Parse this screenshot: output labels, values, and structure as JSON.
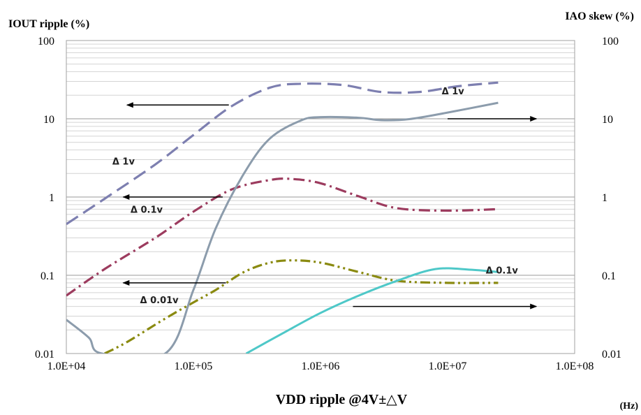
{
  "chart_data": {
    "type": "line",
    "title": "",
    "ylabel": "IOUT ripple (%)",
    "y2label": "IAO skew (%)",
    "xlabel": "VDD ripple @4V±△V",
    "xunit": "(Hz)",
    "x_scale": "log",
    "y_scale": "log",
    "y2_scale": "log",
    "xlim": [
      10000,
      100000000
    ],
    "ylim": [
      0.01,
      100
    ],
    "y2lim": [
      0.01,
      100
    ],
    "x_tick_labels": [
      "1.0E+04",
      "1.0E+05",
      "1.0E+06",
      "1.0E+07",
      "1.0E+08"
    ],
    "y_tick_labels": [
      "100",
      "10",
      "1",
      "0.1",
      "0.01"
    ],
    "y2_tick_labels": [
      "100",
      "10",
      "1",
      "0.1",
      "0.01"
    ],
    "grid": "horizontal minor lines",
    "series": [
      {
        "label": "Δ 1v",
        "axis": "left",
        "style": "dashed",
        "color": "#7d7fb0",
        "points": [
          [
            10000,
            0.45
          ],
          [
            20000,
            0.95
          ],
          [
            50000,
            2.6
          ],
          [
            100000,
            6.2
          ],
          [
            200000,
            14.5
          ],
          [
            400000,
            25
          ],
          [
            700000,
            28
          ],
          [
            1500000,
            27
          ],
          [
            3000000,
            22
          ],
          [
            6000000,
            22
          ],
          [
            12000000,
            26
          ],
          [
            25000000,
            29
          ]
        ]
      },
      {
        "label": "Δ 0.1v",
        "axis": "left",
        "style": "dash-dot",
        "color": "#9c3b5e",
        "points": [
          [
            10000,
            0.055
          ],
          [
            20000,
            0.12
          ],
          [
            50000,
            0.3
          ],
          [
            100000,
            0.65
          ],
          [
            200000,
            1.25
          ],
          [
            400000,
            1.65
          ],
          [
            600000,
            1.7
          ],
          [
            1000000,
            1.5
          ],
          [
            2000000,
            1.02
          ],
          [
            4000000,
            0.72
          ],
          [
            10000000,
            0.67
          ],
          [
            25000000,
            0.7
          ]
        ]
      },
      {
        "label": "Δ 0.01v",
        "axis": "left",
        "style": "dash-dot-dot",
        "color": "#8a8a10",
        "points": [
          [
            20000,
            0.01
          ],
          [
            30000,
            0.014
          ],
          [
            60000,
            0.028
          ],
          [
            100000,
            0.045
          ],
          [
            150000,
            0.065
          ],
          [
            250000,
            0.11
          ],
          [
            400000,
            0.145
          ],
          [
            600000,
            0.155
          ],
          [
            1000000,
            0.145
          ],
          [
            2000000,
            0.11
          ],
          [
            4000000,
            0.085
          ],
          [
            10000000,
            0.08
          ],
          [
            25000000,
            0.08
          ]
        ]
      },
      {
        "label": "Δ 1v",
        "axis": "right",
        "style": "solid",
        "color": "#8c9cac",
        "points": [
          [
            10000,
            0.027
          ],
          [
            15000,
            0.016
          ],
          [
            19000,
            0.01
          ],
          [
            60000,
            0.01
          ],
          [
            100000,
            0.065
          ],
          [
            150000,
            0.4
          ],
          [
            250000,
            2.0
          ],
          [
            400000,
            5.6
          ],
          [
            700000,
            9.5
          ],
          [
            1000000,
            10.5
          ],
          [
            2000000,
            10.3
          ],
          [
            3000000,
            9.6
          ],
          [
            5000000,
            9.9
          ],
          [
            10000000,
            12
          ],
          [
            25000000,
            16
          ]
        ]
      },
      {
        "label": "Δ 0.1v",
        "axis": "right",
        "style": "solid",
        "color": "#4ec8c8",
        "points": [
          [
            260000,
            0.01
          ],
          [
            500000,
            0.018
          ],
          [
            1000000,
            0.033
          ],
          [
            2000000,
            0.055
          ],
          [
            4000000,
            0.085
          ],
          [
            8000000,
            0.12
          ],
          [
            15000000,
            0.118
          ],
          [
            25000000,
            0.11
          ]
        ]
      }
    ],
    "annotations": [
      {
        "text": "Δ 1v",
        "near_series": 0
      },
      {
        "text": "Δ 0.1v",
        "near_series": 1
      },
      {
        "text": "Δ 0.01v",
        "near_series": 2
      },
      {
        "text": "Δ 1v",
        "near_series": 3
      },
      {
        "text": "Δ 0.1v",
        "near_series": 4
      }
    ],
    "arrows": [
      {
        "direction": "left",
        "axis": "left",
        "x_from": 190000,
        "x_to": 30000,
        "y": 15
      },
      {
        "direction": "left",
        "axis": "left",
        "x_from": 170000,
        "x_to": 28000,
        "y": 1
      },
      {
        "direction": "left",
        "axis": "left",
        "x_from": 180000,
        "x_to": 28000,
        "y": 0.08
      },
      {
        "direction": "right",
        "axis": "right",
        "x_from": 10000000,
        "x_to": 50000000,
        "y": 10
      },
      {
        "direction": "right",
        "axis": "right",
        "x_from": 1800000,
        "x_to": 50000000,
        "y": 0.04
      }
    ]
  }
}
